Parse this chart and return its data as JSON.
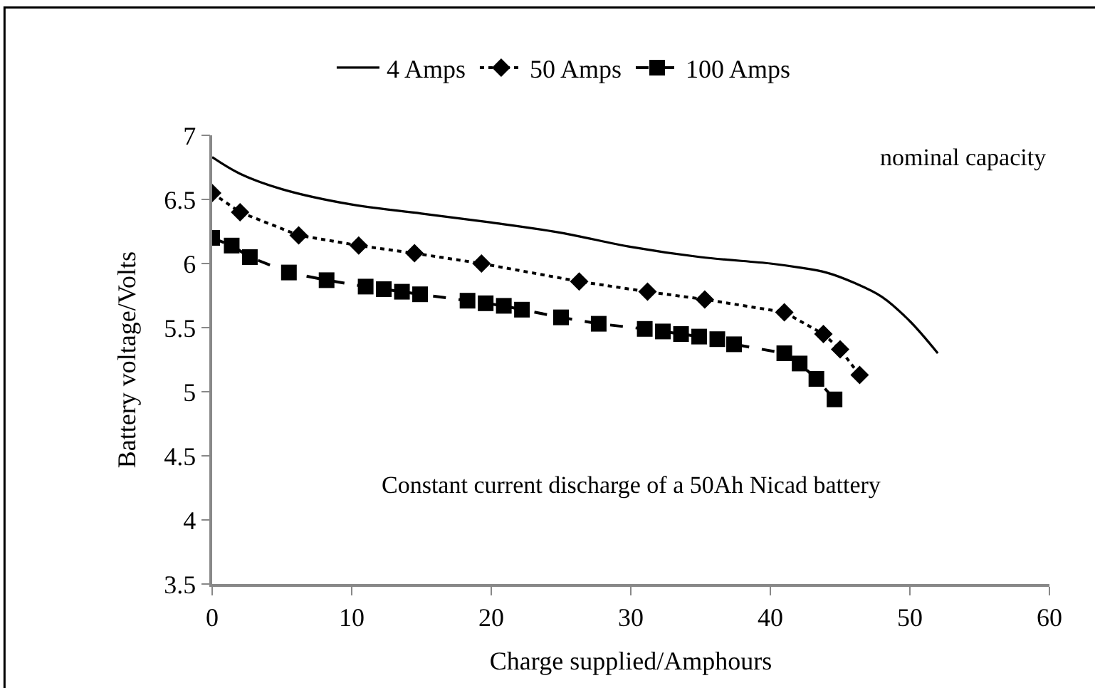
{
  "chart_data": {
    "type": "line",
    "xlabel": "Charge supplied/Amphours",
    "ylabel": "Battery voltage/Volts",
    "xlim": [
      0,
      60
    ],
    "xticks": [
      0,
      10,
      20,
      30,
      40,
      50,
      60
    ],
    "ylim": [
      3.5,
      7
    ],
    "yticks": [
      3.5,
      4,
      4.5,
      5,
      5.5,
      6,
      6.5,
      7
    ],
    "legend": "top",
    "annotations": [
      "nominal capacity",
      "Constant current discharge of a 50Ah Nicad battery"
    ],
    "series": [
      {
        "name": "4 Amps",
        "color": "#000000",
        "marker": "none",
        "line_style": "solid",
        "x": [
          0,
          2,
          5,
          10,
          15,
          20,
          25,
          30,
          35,
          40,
          42,
          44,
          46,
          48,
          50,
          52
        ],
        "values": [
          6.83,
          6.7,
          6.58,
          6.46,
          6.39,
          6.32,
          6.24,
          6.13,
          6.05,
          6.0,
          5.97,
          5.93,
          5.85,
          5.74,
          5.55,
          5.3
        ]
      },
      {
        "name": "50 Amps",
        "color": "#000000",
        "marker": "diamond",
        "line_style": "dotted",
        "x": [
          0,
          2,
          6.2,
          10.5,
          14.5,
          19.3,
          26.3,
          31.2,
          35.3,
          41,
          43.8,
          45,
          46.4
        ],
        "values": [
          6.55,
          6.4,
          6.22,
          6.14,
          6.08,
          6.0,
          5.86,
          5.78,
          5.72,
          5.62,
          5.45,
          5.33,
          5.13
        ]
      },
      {
        "name": "100 Amps",
        "color": "#000000",
        "marker": "square",
        "line_style": "dashed",
        "x": [
          0,
          1.4,
          2.7,
          5.5,
          8.2,
          11,
          12.3,
          13.6,
          14.9,
          18.3,
          19.6,
          20.9,
          22.2,
          25,
          27.7,
          31,
          32.3,
          33.6,
          34.9,
          36.2,
          37.4,
          41,
          42.1,
          43.3,
          44.6
        ],
        "values": [
          6.2,
          6.14,
          6.05,
          5.93,
          5.87,
          5.82,
          5.8,
          5.78,
          5.76,
          5.71,
          5.69,
          5.67,
          5.64,
          5.58,
          5.53,
          5.49,
          5.47,
          5.45,
          5.43,
          5.41,
          5.37,
          5.3,
          5.22,
          5.1,
          4.94
        ]
      }
    ]
  }
}
